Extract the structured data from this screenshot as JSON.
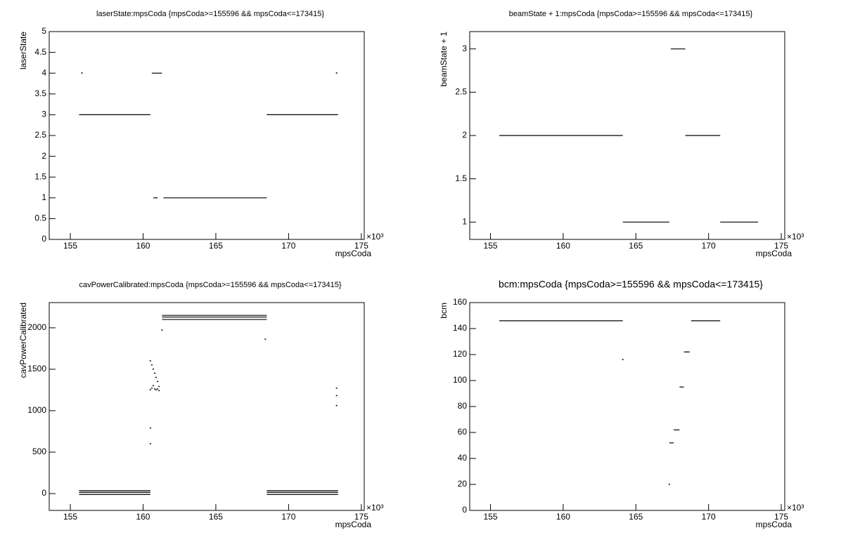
{
  "chart_data": [
    {
      "type": "scatter",
      "title": "laserState:mpsCoda {mpsCoda>=155596 && mpsCoda<=173415}",
      "x_label": "mpsCoda",
      "y_label": "laserState",
      "x_multiplier": "×10³",
      "xlim": [
        153.55,
        175.2
      ],
      "xticks": [
        155,
        160,
        165,
        170,
        175
      ],
      "ylim": [
        0,
        5
      ],
      "yticks": [
        0,
        0.5,
        1,
        1.5,
        2,
        2.5,
        3,
        3.5,
        4,
        4.5,
        5
      ],
      "color": "#000000",
      "segments": [
        {
          "x": [
            155.6,
            160.5
          ],
          "y": 3
        },
        {
          "x": [
            160.6,
            161.3
          ],
          "y": 4
        },
        {
          "x": [
            160.7,
            161.0
          ],
          "y": 1
        },
        {
          "x": [
            161.4,
            168.5
          ],
          "y": 1
        },
        {
          "x": [
            168.5,
            173.4
          ],
          "y": 3
        }
      ],
      "points": {
        "x": [
          155.8,
          173.3
        ],
        "y": [
          4,
          4
        ]
      }
    },
    {
      "type": "scatter",
      "title": "beamState + 1:mpsCoda {mpsCoda>=155596 && mpsCoda<=173415}",
      "x_label": "mpsCoda",
      "y_label": "beamState + 1",
      "x_multiplier": "×10³",
      "xlim": [
        153.57,
        175.24
      ],
      "xticks": [
        155,
        160,
        165,
        170,
        175
      ],
      "ylim": [
        0.8,
        3.2
      ],
      "yticks": [
        1,
        1.5,
        2,
        2.5,
        3
      ],
      "color": "#000000",
      "segments": [
        {
          "x": [
            155.6,
            164.1
          ],
          "y": 2
        },
        {
          "x": [
            164.1,
            167.3
          ],
          "y": 1
        },
        {
          "x": [
            167.4,
            168.4
          ],
          "y": 3
        },
        {
          "x": [
            168.4,
            170.8
          ],
          "y": 2
        },
        {
          "x": [
            170.8,
            173.4
          ],
          "y": 1
        }
      ],
      "points": {
        "x": [],
        "y": []
      }
    },
    {
      "type": "scatter",
      "title": "cavPowerCalibrated:mpsCoda {mpsCoda>=155596 && mpsCoda<=173415}",
      "x_label": "mpsCoda",
      "y_label": "cavPowerCalibrated",
      "x_multiplier": "×10³",
      "xlim": [
        153.55,
        175.2
      ],
      "xticks": [
        155,
        160,
        165,
        170,
        175
      ],
      "ylim": [
        -203,
        2304
      ],
      "yticks": [
        0,
        500,
        1000,
        1500,
        2000
      ],
      "color": "#000000",
      "segments": [
        {
          "x": [
            155.6,
            160.5
          ],
          "y": 35
        },
        {
          "x": [
            155.6,
            160.5
          ],
          "y": 15
        },
        {
          "x": [
            155.6,
            160.5
          ],
          "y": -10
        },
        {
          "x": [
            161.3,
            168.5
          ],
          "y": 2150
        },
        {
          "x": [
            161.3,
            168.5
          ],
          "y": 2130
        },
        {
          "x": [
            161.3,
            168.5
          ],
          "y": 2100
        },
        {
          "x": [
            168.5,
            173.4
          ],
          "y": 35
        },
        {
          "x": [
            168.5,
            173.4
          ],
          "y": 15
        },
        {
          "x": [
            168.5,
            173.4
          ],
          "y": -10
        }
      ],
      "points": {
        "x": [
          160.5,
          160.5,
          160.6,
          160.6,
          160.7,
          160.7,
          160.8,
          160.8,
          160.9,
          160.9,
          161.0,
          161.0,
          161.1,
          161.1,
          160.5,
          160.5,
          161.3,
          168.4,
          173.3,
          173.3,
          173.3
        ],
        "y": [
          1250,
          1600,
          1270,
          1550,
          1300,
          1500,
          1260,
          1450,
          1250,
          1400,
          1260,
          1350,
          1240,
          1290,
          790,
          600,
          1970,
          1860,
          1270,
          1180,
          1060
        ]
      }
    },
    {
      "type": "scatter",
      "title": "bcm:mpsCoda {mpsCoda>=155596 && mpsCoda<=173415}",
      "x_label": "mpsCoda",
      "y_label": "bcm",
      "x_multiplier": "×10³",
      "xlim": [
        153.57,
        175.24
      ],
      "xticks": [
        155,
        160,
        165,
        170,
        175
      ],
      "ylim": [
        0,
        160
      ],
      "yticks": [
        0,
        20,
        40,
        60,
        80,
        100,
        120,
        140,
        160
      ],
      "color": "#000000",
      "segments": [
        {
          "x": [
            155.6,
            164.1
          ],
          "y": 146
        },
        {
          "x": [
            167.3,
            167.6
          ],
          "y": 52
        },
        {
          "x": [
            167.6,
            168.0
          ],
          "y": 62
        },
        {
          "x": [
            168.0,
            168.3
          ],
          "y": 95
        },
        {
          "x": [
            168.3,
            168.7
          ],
          "y": 122
        },
        {
          "x": [
            168.8,
            170.8
          ],
          "y": 146
        }
      ],
      "points": {
        "x": [
          164.1,
          167.3
        ],
        "y": [
          116,
          20
        ]
      }
    }
  ]
}
